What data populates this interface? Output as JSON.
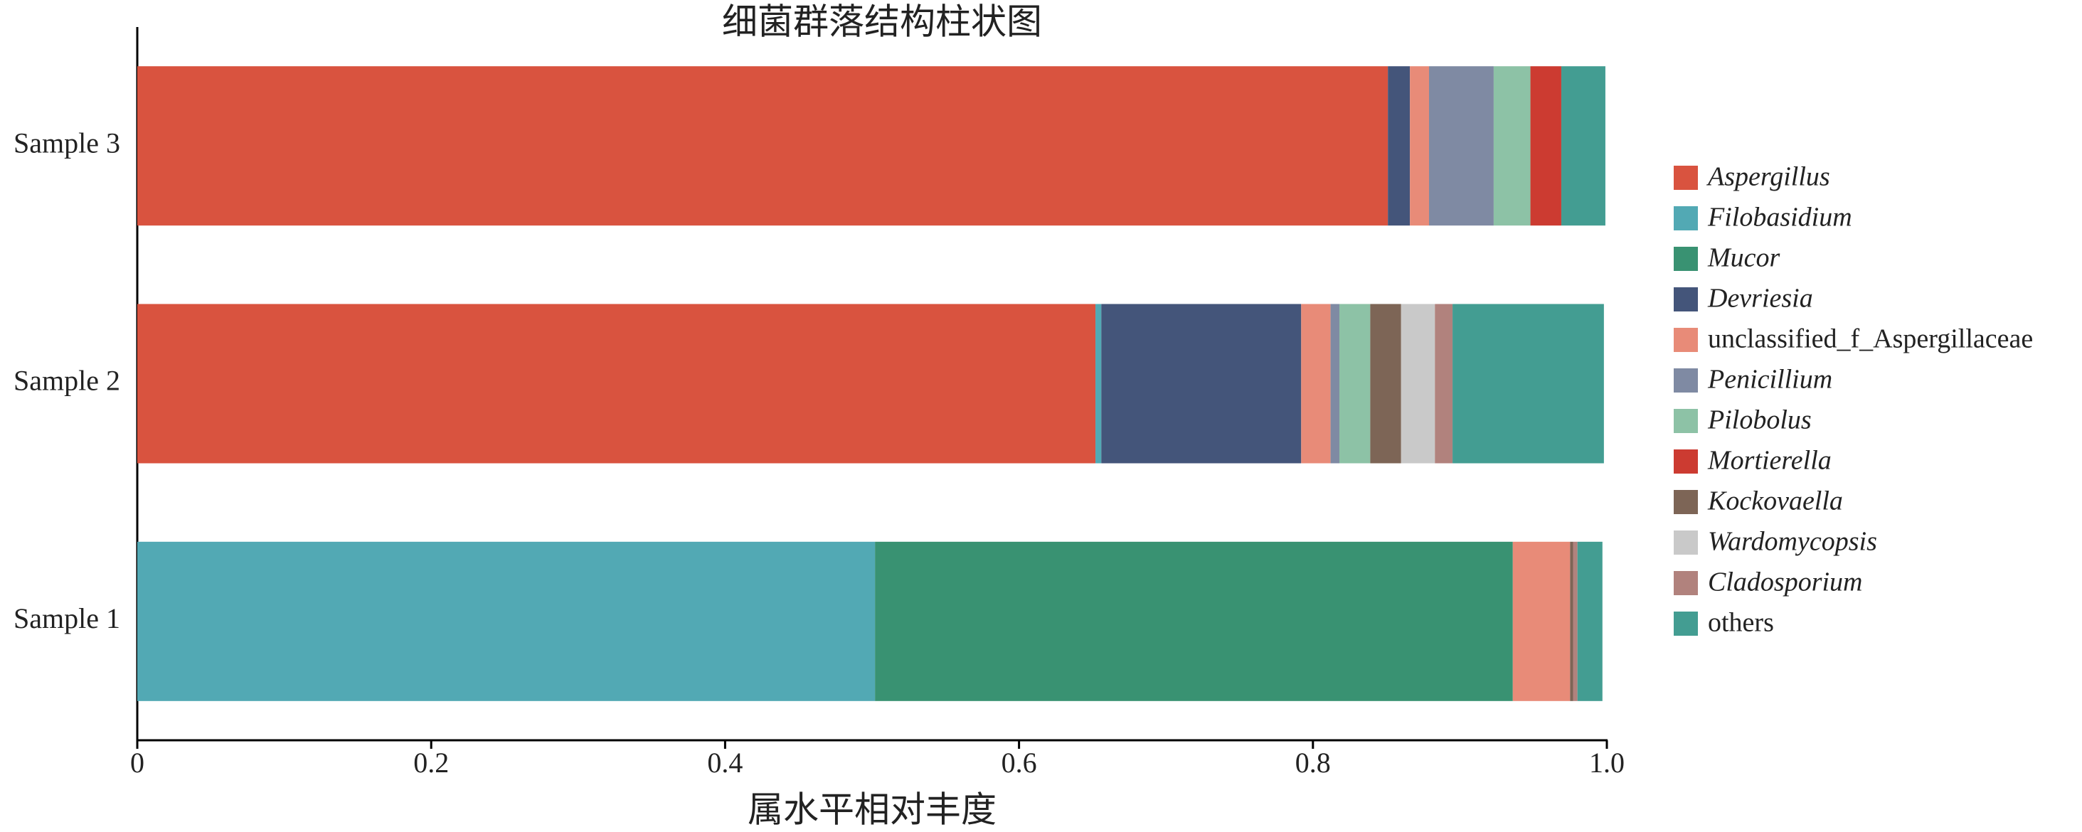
{
  "chart_data": {
    "type": "stacked-barh",
    "title": "细菌群落结构柱状图",
    "xlabel": "属水平相对丰度",
    "categories": [
      "Sample 1",
      "Sample 2",
      "Sample 3"
    ],
    "xlim": [
      0,
      1
    ],
    "xticks": [
      0,
      0.2,
      0.4,
      0.6,
      0.8,
      {
        "value": 1,
        "label": "1.0"
      }
    ],
    "legend": "right",
    "series": [
      {
        "name": "Aspergillus",
        "color": "#d9533f",
        "values": [
          0,
          0.652,
          0.851
        ]
      },
      {
        "name": "Filobasidium",
        "color": "#52a9b4",
        "values": [
          0.502,
          0.004,
          0
        ]
      },
      {
        "name": "Mucor",
        "color": "#399272",
        "values": [
          0.434,
          0,
          0
        ]
      },
      {
        "name": "Devriesia",
        "color": "#44557a",
        "values": [
          0,
          0.136,
          0.015
        ]
      },
      {
        "name": "unclassified_f_Aspergillaceae",
        "color": "#e88b78",
        "values": [
          0.039,
          0.02,
          0.013
        ]
      },
      {
        "name": "Penicillium",
        "color": "#7f8aa3",
        "values": [
          0,
          0.006,
          0.044
        ]
      },
      {
        "name": "Pilobolus",
        "color": "#8dc2a6",
        "values": [
          0,
          0.021,
          0.025
        ]
      },
      {
        "name": "Mortierella",
        "color": "#cc3b31",
        "values": [
          0,
          0,
          0.021
        ]
      },
      {
        "name": "Kockovaella",
        "color": "#7d6556",
        "values": [
          0.002,
          0.021,
          0
        ]
      },
      {
        "name": "Wardomycopsis",
        "color": "#c9c9c9",
        "values": [
          0,
          0.023,
          0
        ]
      },
      {
        "name": "Cladosporium",
        "color": "#b1827d",
        "values": [
          0.003,
          0.012,
          0
        ]
      },
      {
        "name": "others",
        "color": "#439d92",
        "values": [
          0.017,
          0.103,
          0.03
        ]
      }
    ]
  }
}
